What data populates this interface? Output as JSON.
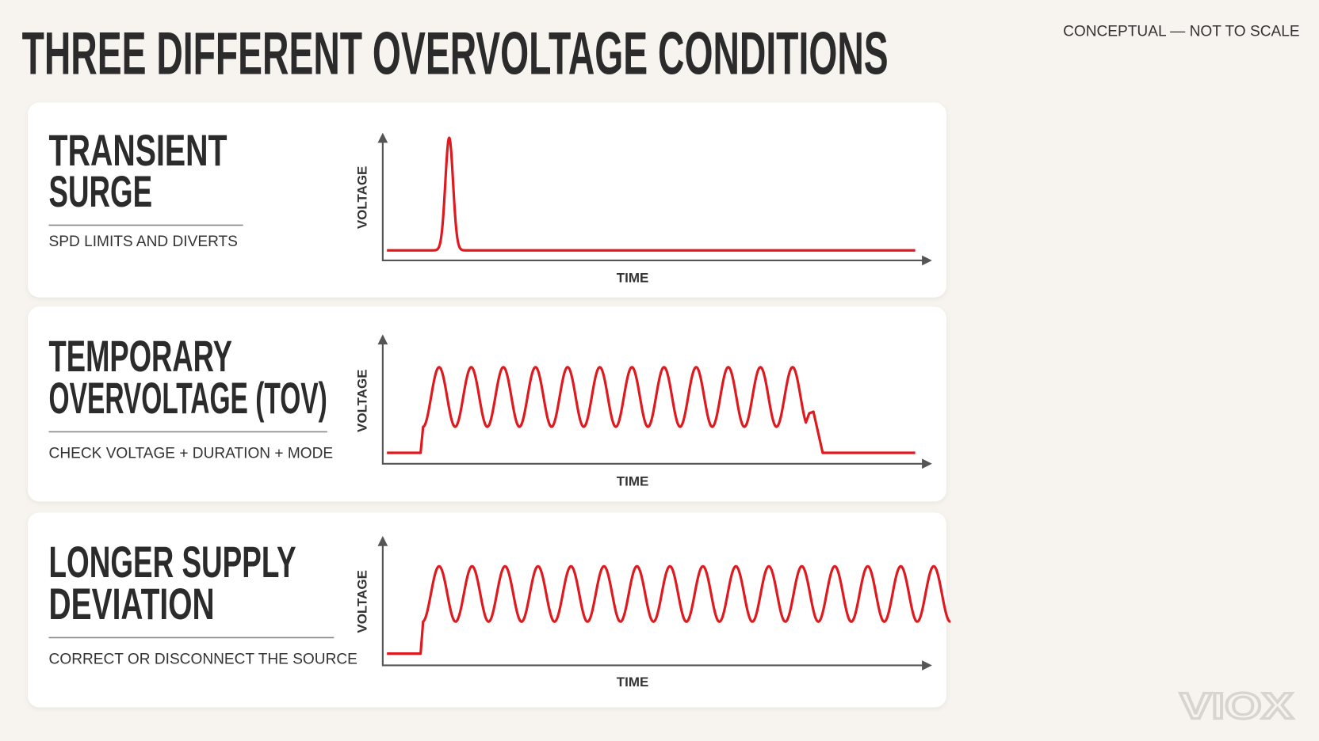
{
  "title": "THREE DIFFERENT OVERVOLTAGE CONDITIONS",
  "note": "CONCEPTUAL — NOT TO SCALE",
  "panels": [
    {
      "heading": [
        "TRANSIENT",
        "SURGE"
      ],
      "subtitle": "SPD LIMITS AND DIVERTS",
      "y_axis": "VOLTAGE",
      "x_axis": "TIME"
    },
    {
      "heading": [
        "TEMPORARY",
        "OVERVOLTAGE (TOV)"
      ],
      "subtitle": "CHECK VOLTAGE + DURATION + MODE",
      "y_axis": "VOLTAGE",
      "x_axis": "TIME"
    },
    {
      "heading": [
        "LONGER SUPPLY",
        "DEVIATION"
      ],
      "subtitle": "CORRECT OR DISCONNECT THE SOURCE",
      "y_axis": "VOLTAGE",
      "x_axis": "TIME"
    }
  ],
  "logo": "VIOX"
}
